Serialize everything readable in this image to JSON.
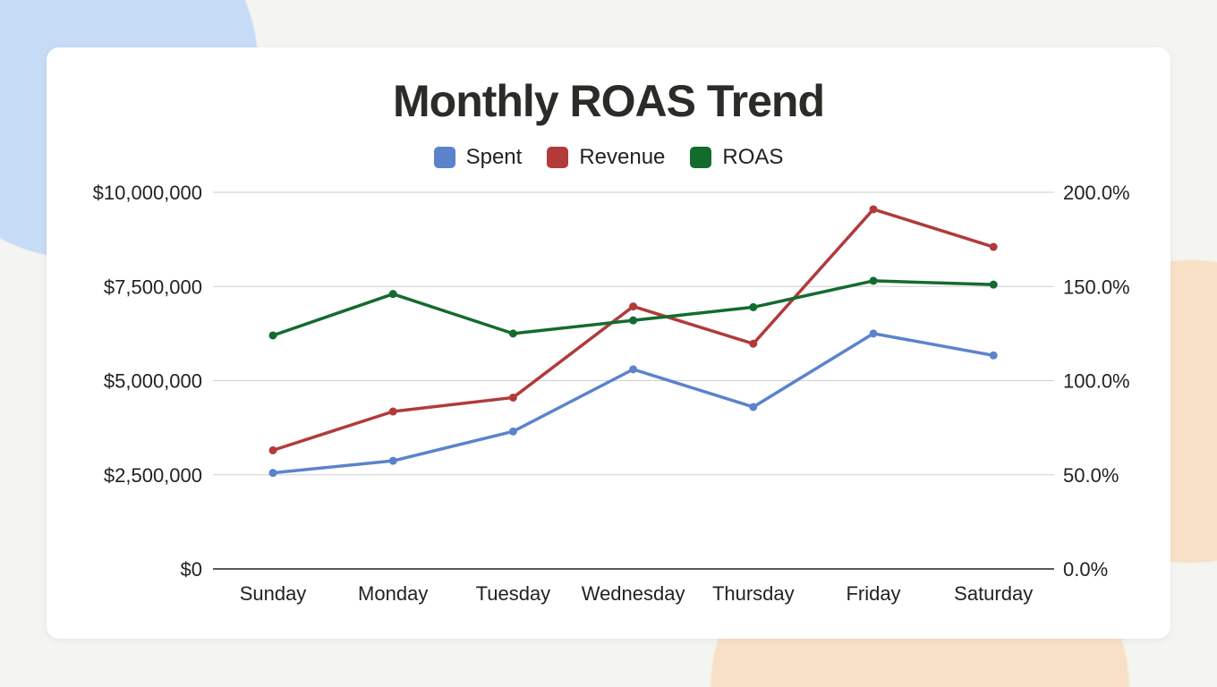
{
  "chart_data": {
    "type": "line",
    "title": "Monthly ROAS Trend",
    "categories": [
      "Sunday",
      "Monday",
      "Tuesday",
      "Wednesday",
      "Thursday",
      "Friday",
      "Saturday"
    ],
    "series": [
      {
        "name": "Spent",
        "axis": "left",
        "color": "#5b83cc",
        "values": [
          2550000,
          2870000,
          3650000,
          5300000,
          4300000,
          6250000,
          5670000
        ]
      },
      {
        "name": "Revenue",
        "axis": "left",
        "color": "#b23a3a",
        "values": [
          3150000,
          4180000,
          4550000,
          6970000,
          5980000,
          9550000,
          8550000
        ]
      },
      {
        "name": "ROAS",
        "axis": "right",
        "color": "#146b2e",
        "values": [
          124,
          146,
          125,
          132,
          139,
          153,
          151
        ]
      }
    ],
    "y_left": {
      "ylim": [
        0,
        10000000
      ],
      "ticks": [
        "$0",
        "$2,500,000",
        "$5,000,000",
        "$7,500,000",
        "$10,000,000"
      ]
    },
    "y_right": {
      "ylim": [
        0,
        200
      ],
      "ticks": [
        "0.0%",
        "50.0%",
        "100.0%",
        "150.0%",
        "200.0%"
      ]
    },
    "grid": true,
    "legend_position": "top"
  }
}
